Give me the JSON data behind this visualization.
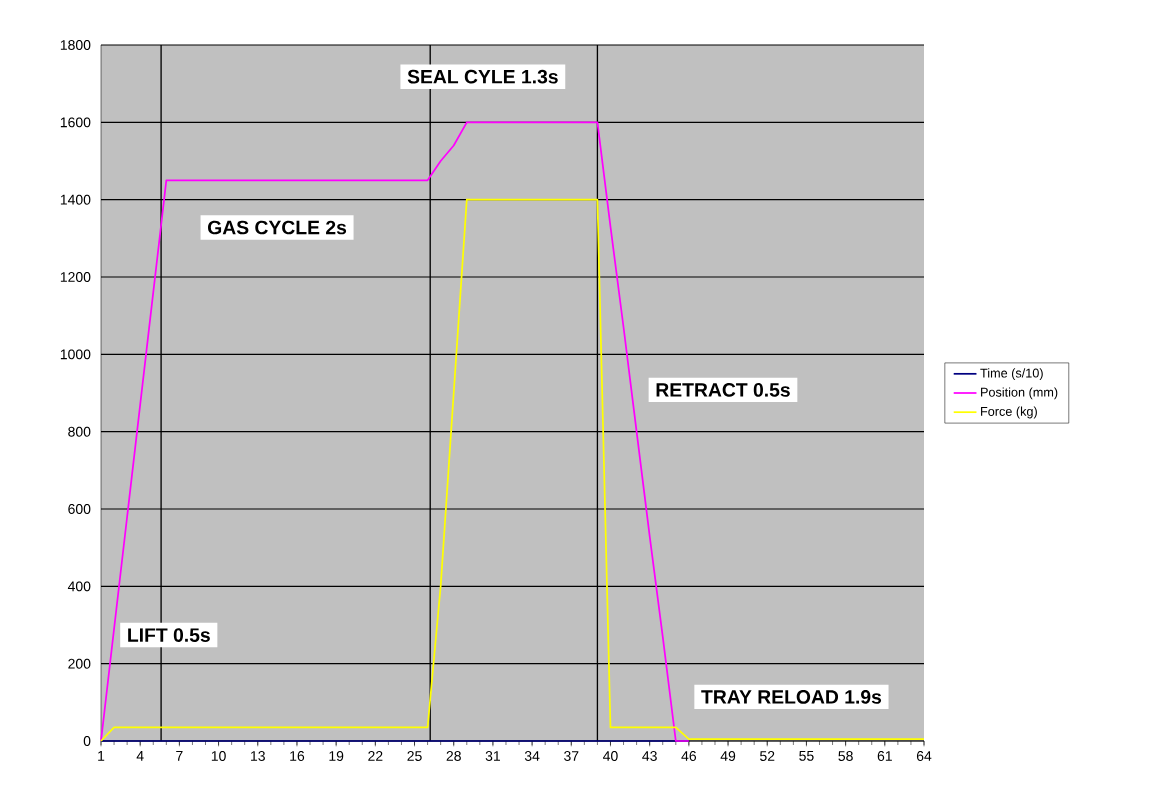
{
  "chart_data": {
    "type": "line",
    "x": [
      1,
      2,
      3,
      4,
      5,
      6,
      7,
      8,
      9,
      10,
      11,
      12,
      13,
      14,
      15,
      16,
      17,
      18,
      19,
      20,
      21,
      22,
      23,
      24,
      25,
      26,
      27,
      28,
      29,
      30,
      31,
      32,
      33,
      34,
      35,
      36,
      37,
      38,
      39,
      40,
      41,
      42,
      43,
      44,
      45,
      46,
      47,
      48,
      49,
      50,
      51,
      52,
      53,
      54,
      55,
      56,
      57,
      58,
      59,
      60,
      61,
      62,
      63,
      64
    ],
    "series": [
      {
        "name": "Time (s/10)",
        "color": "#000080",
        "values": [
          0,
          0,
          0,
          0,
          0,
          0,
          0,
          0,
          0,
          0,
          0,
          0,
          0,
          0,
          0,
          0,
          0,
          0,
          0,
          0,
          0,
          0,
          0,
          0,
          0,
          0,
          0,
          0,
          0,
          0,
          0,
          0,
          0,
          0,
          0,
          0,
          0,
          0,
          0,
          0,
          0,
          0,
          0,
          0,
          0,
          0,
          null,
          null,
          null,
          null,
          null,
          null,
          null,
          null,
          null,
          null,
          null,
          null,
          null,
          null,
          null,
          null,
          null,
          null
        ]
      },
      {
        "name": "Position (mm)",
        "color": "#ff00ff",
        "values": [
          0,
          290,
          580,
          870,
          1160,
          1450,
          1450,
          1450,
          1450,
          1450,
          1450,
          1450,
          1450,
          1450,
          1450,
          1450,
          1450,
          1450,
          1450,
          1450,
          1450,
          1450,
          1450,
          1450,
          1450,
          1450,
          1500,
          1540,
          1600,
          1600,
          1600,
          1600,
          1600,
          1600,
          1600,
          1600,
          1600,
          1600,
          1600,
          1330,
          1070,
          800,
          530,
          270,
          0,
          0,
          null,
          null,
          null,
          null,
          null,
          null,
          null,
          null,
          null,
          null,
          null,
          null,
          null,
          null,
          null,
          null,
          null,
          null
        ]
      },
      {
        "name": "Force (kg)",
        "color": "#ffff00",
        "values": [
          0,
          35,
          35,
          35,
          35,
          35,
          35,
          35,
          35,
          35,
          35,
          35,
          35,
          35,
          35,
          35,
          35,
          35,
          35,
          35,
          35,
          35,
          35,
          35,
          35,
          35,
          400,
          900,
          1400,
          1400,
          1400,
          1400,
          1400,
          1400,
          1400,
          1400,
          1400,
          1400,
          1400,
          35,
          35,
          35,
          35,
          35,
          35,
          5,
          5,
          5,
          5,
          5,
          5,
          5,
          5,
          5,
          5,
          5,
          5,
          5,
          5,
          5,
          5,
          5,
          5,
          5
        ]
      }
    ],
    "xlim": [
      1,
      64
    ],
    "xticks": [
      1,
      4,
      7,
      10,
      13,
      16,
      19,
      22,
      25,
      28,
      31,
      34,
      37,
      40,
      43,
      46,
      49,
      52,
      55,
      58,
      61,
      64
    ],
    "ylim": [
      0,
      1800
    ],
    "yticks": [
      0,
      200,
      400,
      600,
      800,
      1000,
      1200,
      1400,
      1600,
      1800
    ],
    "grid": "y",
    "legend": "right",
    "marker": "none",
    "line_style": "solid",
    "ref_lines": [
      {
        "axis": "x",
        "value": 5.6,
        "color": "#000000"
      },
      {
        "axis": "x",
        "value": 26.2,
        "color": "#000000"
      },
      {
        "axis": "x",
        "value": 39,
        "color": "#000000"
      }
    ],
    "annotations": [
      "LIFT 0.5s",
      "GAS CYCLE 2s",
      "SEAL CYLE 1.3s",
      "RETRACT 0.5s",
      "TRAY RELOAD 1.9s"
    ]
  }
}
